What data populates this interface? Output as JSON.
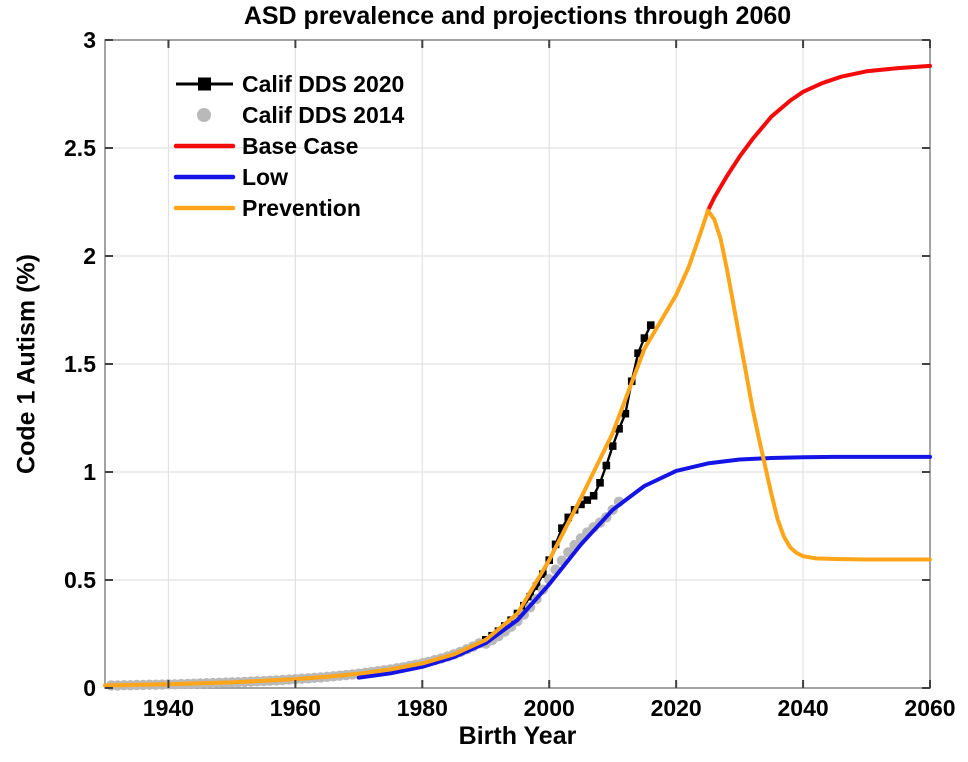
{
  "chart_data": {
    "type": "line",
    "title": "ASD prevalence and projections through 2060",
    "xlabel": "Birth Year",
    "ylabel": "Code 1 Autism (%)",
    "xlim": [
      1930,
      2060
    ],
    "ylim": [
      0,
      3
    ],
    "x_ticks": [
      1940,
      1960,
      1980,
      2000,
      2020,
      2040,
      2060
    ],
    "y_ticks": [
      0,
      0.5,
      1,
      1.5,
      2,
      2.5,
      3
    ],
    "grid": true,
    "legend_position": "top-left",
    "colors": {
      "dds2020": "#000000",
      "dds2014": "#b9b9b9",
      "base_case": "#f50a0a",
      "low": "#1414e6",
      "prevention": "#ffa51a",
      "gridline": "#e2e2e2",
      "box": "#8c8c8c",
      "tick": "#404040"
    },
    "series": [
      {
        "name": "Calif DDS 2020",
        "style": "line+square",
        "color": "#000000",
        "x0": 1931,
        "x_step": 1,
        "values": [
          0.012,
          0.012,
          0.013,
          0.013,
          0.014,
          0.014,
          0.015,
          0.015,
          0.016,
          0.017,
          0.017,
          0.018,
          0.019,
          0.02,
          0.021,
          0.022,
          0.023,
          0.024,
          0.025,
          0.026,
          0.027,
          0.028,
          0.03,
          0.031,
          0.032,
          0.034,
          0.035,
          0.037,
          0.039,
          0.041,
          0.043,
          0.045,
          0.047,
          0.049,
          0.052,
          0.054,
          0.057,
          0.06,
          0.063,
          0.066,
          0.07,
          0.074,
          0.078,
          0.082,
          0.086,
          0.091,
          0.096,
          0.102,
          0.108,
          0.114,
          0.121,
          0.129,
          0.137,
          0.146,
          0.156,
          0.167,
          0.179,
          0.192,
          0.207,
          0.223,
          0.242,
          0.263,
          0.287,
          0.314,
          0.345,
          0.381,
          0.423,
          0.471,
          0.527,
          0.592,
          0.665,
          0.74,
          0.79,
          0.825,
          0.85,
          0.87,
          0.89,
          0.95,
          1.03,
          1.12,
          1.2,
          1.27,
          1.42,
          1.55,
          1.62,
          1.68
        ]
      },
      {
        "name": "Calif DDS 2014",
        "style": "circle",
        "color": "#b9b9b9",
        "x0": 1931,
        "x_step": 1,
        "values": [
          0.012,
          0.012,
          0.013,
          0.013,
          0.014,
          0.014,
          0.015,
          0.015,
          0.016,
          0.017,
          0.017,
          0.018,
          0.019,
          0.02,
          0.021,
          0.022,
          0.023,
          0.024,
          0.025,
          0.026,
          0.027,
          0.028,
          0.03,
          0.031,
          0.032,
          0.034,
          0.035,
          0.037,
          0.039,
          0.041,
          0.043,
          0.045,
          0.047,
          0.049,
          0.052,
          0.054,
          0.057,
          0.06,
          0.063,
          0.066,
          0.07,
          0.074,
          0.078,
          0.082,
          0.086,
          0.091,
          0.096,
          0.102,
          0.108,
          0.114,
          0.121,
          0.129,
          0.137,
          0.146,
          0.156,
          0.167,
          0.179,
          0.192,
          0.207,
          0.205,
          0.222,
          0.24,
          0.261,
          0.284,
          0.31,
          0.34,
          0.374,
          0.412,
          0.455,
          0.503,
          0.548,
          0.59,
          0.628,
          0.662,
          0.693,
          0.72,
          0.744,
          0.766,
          0.79,
          0.825,
          0.862
        ]
      },
      {
        "name": "Base Case",
        "style": "line",
        "color": "#f50a0a",
        "x": [
          2025,
          2026,
          2028,
          2030,
          2032,
          2035,
          2038,
          2040,
          2043,
          2046,
          2050,
          2055,
          2060
        ],
        "values": [
          2.21,
          2.27,
          2.37,
          2.46,
          2.54,
          2.645,
          2.72,
          2.76,
          2.8,
          2.83,
          2.855,
          2.87,
          2.88
        ]
      },
      {
        "name": "Low",
        "style": "line",
        "color": "#1414e6",
        "x": [
          1970,
          1975,
          1980,
          1985,
          1990,
          1995,
          2000,
          2005,
          2010,
          2015,
          2020,
          2025,
          2030,
          2035,
          2040,
          2045,
          2050,
          2055,
          2060
        ],
        "values": [
          0.048,
          0.068,
          0.098,
          0.143,
          0.208,
          0.315,
          0.48,
          0.665,
          0.825,
          0.935,
          1.005,
          1.04,
          1.058,
          1.065,
          1.068,
          1.07,
          1.07,
          1.07,
          1.07
        ]
      },
      {
        "name": "Prevention",
        "style": "line",
        "color": "#ffa51a",
        "x": [
          1930,
          1940,
          1950,
          1960,
          1965,
          1970,
          1975,
          1980,
          1985,
          1990,
          1995,
          2000,
          2005,
          2010,
          2015,
          2020,
          2022,
          2024,
          2025,
          2026,
          2027,
          2028,
          2029,
          2030,
          2031,
          2032,
          2033,
          2034,
          2035,
          2036,
          2037,
          2038,
          2039,
          2040,
          2042,
          2045,
          2050,
          2055,
          2060
        ],
        "values": [
          0.012,
          0.017,
          0.026,
          0.041,
          0.052,
          0.066,
          0.086,
          0.114,
          0.156,
          0.223,
          0.345,
          0.592,
          0.88,
          1.18,
          1.57,
          1.82,
          1.95,
          2.12,
          2.21,
          2.17,
          2.08,
          1.94,
          1.78,
          1.62,
          1.46,
          1.3,
          1.16,
          1.03,
          0.9,
          0.78,
          0.7,
          0.65,
          0.625,
          0.61,
          0.6,
          0.597,
          0.595,
          0.595,
          0.595
        ]
      }
    ]
  }
}
